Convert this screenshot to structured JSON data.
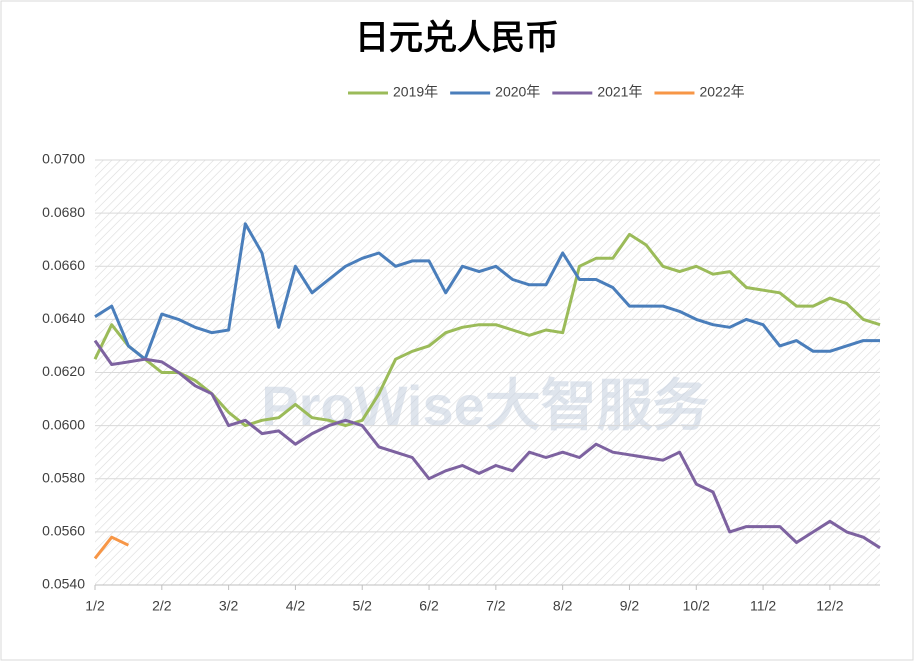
{
  "chart_data": {
    "type": "line",
    "title": "日元兑人民币",
    "watermark": "ProWise大智服务",
    "categories": [
      "1/2",
      null,
      null,
      null,
      "2/2",
      null,
      null,
      null,
      "3/2",
      null,
      null,
      null,
      "4/2",
      null,
      null,
      null,
      "5/2",
      null,
      null,
      null,
      "6/2",
      null,
      null,
      null,
      "7/2",
      null,
      null,
      null,
      "8/2",
      null,
      null,
      null,
      "9/2",
      null,
      null,
      null,
      "10/2",
      null,
      null,
      null,
      "11/2",
      null,
      null,
      null,
      "12/2",
      null,
      null,
      null
    ],
    "series": [
      {
        "name": "2019年",
        "color": "#9bbb59",
        "values": [
          0.0625,
          0.0638,
          0.063,
          0.0625,
          0.062,
          0.062,
          0.0617,
          0.0612,
          0.0605,
          0.06,
          0.0602,
          0.0603,
          0.0608,
          0.0603,
          0.0602,
          0.06,
          0.0602,
          0.0612,
          0.0625,
          0.0628,
          0.063,
          0.0635,
          0.0637,
          0.0638,
          0.0638,
          0.0636,
          0.0634,
          0.0636,
          0.0635,
          0.066,
          0.0663,
          0.0663,
          0.0672,
          0.0668,
          0.066,
          0.0658,
          0.066,
          0.0657,
          0.0658,
          0.0652,
          0.0651,
          0.065,
          0.0645,
          0.0645,
          0.0648,
          0.0646,
          0.064,
          0.0638
        ]
      },
      {
        "name": "2020年",
        "color": "#4a7ebb",
        "values": [
          0.0641,
          0.0645,
          0.063,
          0.0625,
          0.0642,
          0.064,
          0.0637,
          0.0635,
          0.0636,
          0.0676,
          0.0665,
          0.0637,
          0.066,
          0.065,
          0.0655,
          0.066,
          0.0663,
          0.0665,
          0.066,
          0.0662,
          0.0662,
          0.065,
          0.066,
          0.0658,
          0.066,
          0.0655,
          0.0653,
          0.0653,
          0.0665,
          0.0655,
          0.0655,
          0.0652,
          0.0645,
          0.0645,
          0.0645,
          0.0643,
          0.064,
          0.0638,
          0.0637,
          0.064,
          0.0638,
          0.063,
          0.0632,
          0.0628,
          0.0628,
          0.063,
          0.0632,
          0.0632
        ]
      },
      {
        "name": "2021年",
        "color": "#7d62a0",
        "values": [
          0.0632,
          0.0623,
          0.0624,
          0.0625,
          0.0624,
          0.062,
          0.0615,
          0.0612,
          0.06,
          0.0602,
          0.0597,
          0.0598,
          0.0593,
          0.0597,
          0.06,
          0.0602,
          0.06,
          0.0592,
          0.059,
          0.0588,
          0.058,
          0.0583,
          0.0585,
          0.0582,
          0.0585,
          0.0583,
          0.059,
          0.0588,
          0.059,
          0.0588,
          0.0593,
          0.059,
          0.0589,
          0.0588,
          0.0587,
          0.059,
          0.0578,
          0.0575,
          0.056,
          0.0562,
          0.0562,
          0.0562,
          0.0556,
          0.056,
          0.0564,
          0.056,
          0.0558,
          0.0554
        ]
      },
      {
        "name": "2022年",
        "color": "#f79646",
        "values": [
          0.055,
          0.0558,
          0.0555,
          null,
          null,
          null,
          null,
          null,
          null,
          null,
          null,
          null,
          null,
          null,
          null,
          null,
          null,
          null,
          null,
          null,
          null,
          null,
          null,
          null,
          null,
          null,
          null,
          null,
          null,
          null,
          null,
          null,
          null,
          null,
          null,
          null,
          null,
          null,
          null,
          null,
          null,
          null,
          null,
          null,
          null,
          null,
          null,
          null
        ]
      }
    ],
    "ylim": [
      0.054,
      0.07
    ],
    "yticks": [
      {
        "value": 0.054,
        "label": "0.0540"
      },
      {
        "value": 0.056,
        "label": "0.0560"
      },
      {
        "value": 0.058,
        "label": "0.0580"
      },
      {
        "value": 0.06,
        "label": "0.0600"
      },
      {
        "value": 0.062,
        "label": "0.0620"
      },
      {
        "value": 0.064,
        "label": "0.0640"
      },
      {
        "value": 0.066,
        "label": "0.0660"
      },
      {
        "value": 0.068,
        "label": "0.0680"
      },
      {
        "value": 0.07,
        "label": "0.0700"
      }
    ],
    "grid": true
  }
}
